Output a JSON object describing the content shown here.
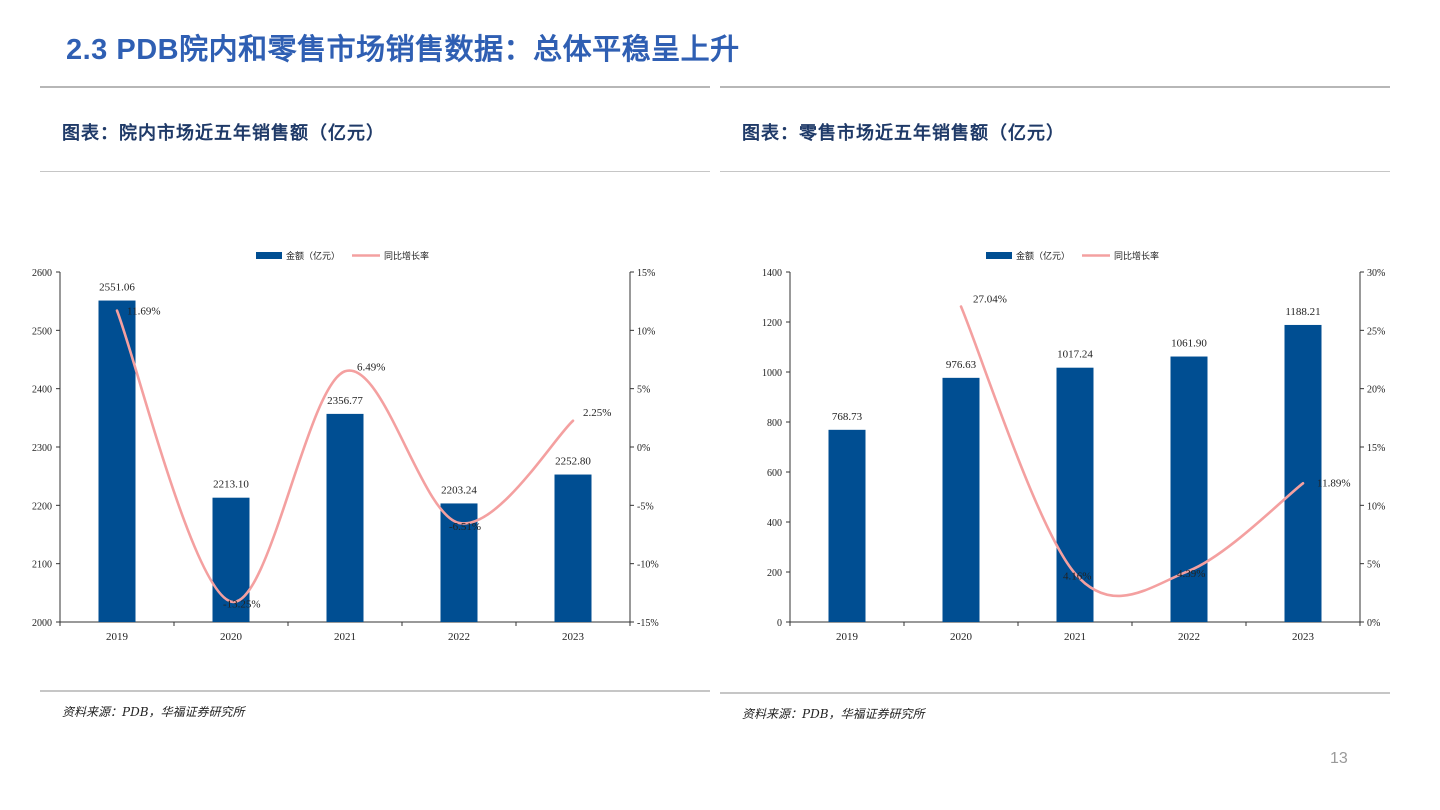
{
  "title": "2.3 PDB院内和零售市场销售数据：总体平稳呈上升",
  "page_number": "13",
  "colors": {
    "title": "#2f5fb3",
    "bar": "#004e92",
    "line": "#f4a0a0"
  },
  "left": {
    "title": "图表：院内市场近五年销售额（亿元）",
    "source": "资料来源：PDB，华福证券研究所"
  },
  "right": {
    "title": "图表：零售市场近五年销售额（亿元）",
    "source": "资料来源：PDB，华福证券研究所"
  },
  "chart_data": [
    {
      "type": "bar",
      "categories": [
        "2019",
        "2020",
        "2021",
        "2022",
        "2023"
      ],
      "series": [
        {
          "name": "金额（亿元）",
          "type": "bar",
          "axis": "left",
          "values": [
            2551.06,
            2213.1,
            2356.77,
            2203.24,
            2252.8
          ],
          "labels": [
            "2551.06",
            "2213.10",
            "2356.77",
            "2203.24",
            "2252.80"
          ]
        },
        {
          "name": "同比增长率",
          "type": "line",
          "axis": "right",
          "values": [
            11.69,
            -13.25,
            6.49,
            -6.51,
            2.25
          ],
          "labels": [
            "11.69%",
            "-13.25%",
            "6.49%",
            "-6.51%",
            "2.25%"
          ]
        }
      ],
      "ylim": [
        2000,
        2600
      ],
      "yticks": [
        "2000",
        "2100",
        "2200",
        "2300",
        "2400",
        "2500",
        "2600"
      ],
      "y2lim": [
        -15,
        15
      ],
      "y2ticks": [
        "-15%",
        "-10%",
        "-5%",
        "0%",
        "5%",
        "10%",
        "15%"
      ],
      "legend": "top-center",
      "grid": false
    },
    {
      "type": "bar",
      "categories": [
        "2019",
        "2020",
        "2021",
        "2022",
        "2023"
      ],
      "series": [
        {
          "name": "金额（亿元）",
          "type": "bar",
          "axis": "left",
          "values": [
            768.73,
            976.63,
            1017.24,
            1061.9,
            1188.21
          ],
          "labels": [
            "768.73",
            "976.63",
            "1017.24",
            "1061.90",
            "1188.21"
          ]
        },
        {
          "name": "同比增长率",
          "type": "line",
          "axis": "right",
          "values": [
            null,
            27.04,
            4.16,
            4.39,
            11.89
          ],
          "labels": [
            "",
            "27.04%",
            "4.16%",
            "4.39%",
            "11.89%"
          ]
        }
      ],
      "ylim": [
        0,
        1400
      ],
      "yticks": [
        "0",
        "200",
        "400",
        "600",
        "800",
        "1000",
        "1200",
        "1400"
      ],
      "y2lim": [
        0,
        30
      ],
      "y2ticks": [
        "0%",
        "5%",
        "10%",
        "15%",
        "20%",
        "25%",
        "30%"
      ],
      "legend": "top-center",
      "grid": false
    }
  ]
}
